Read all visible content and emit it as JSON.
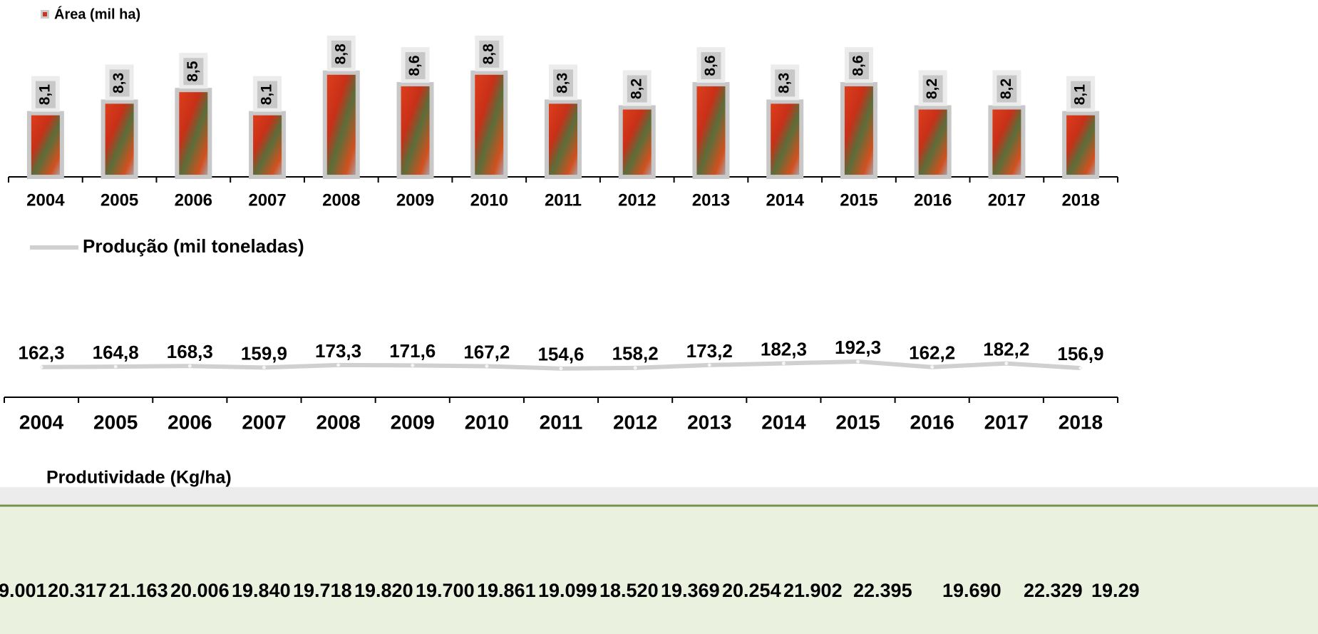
{
  "chart_data": [
    {
      "type": "bar",
      "legend": "Área (mil ha)",
      "legend_position": "top-left",
      "color": "#cc3322",
      "border_color": "#c8c8c8",
      "categories": [
        "2004",
        "2005",
        "2006",
        "2007",
        "2008",
        "2009",
        "2010",
        "2011",
        "2012",
        "2013",
        "2014",
        "2015",
        "2016",
        "2017",
        "2018"
      ],
      "values": [
        8.1,
        8.3,
        8.5,
        8.1,
        8.8,
        8.6,
        8.8,
        8.3,
        8.2,
        8.6,
        8.3,
        8.6,
        8.2,
        8.2,
        8.1
      ],
      "value_labels": [
        "8,1",
        "8,3",
        "8,5",
        "8,1",
        "8,8",
        "8,6",
        "8,8",
        "8,3",
        "8,2",
        "8,6",
        "8,3",
        "8,6",
        "8,2",
        "8,2",
        "8,1"
      ],
      "ylim": [
        7,
        9.5
      ]
    },
    {
      "type": "line",
      "legend": "Produção (mil toneladas)",
      "legend_position": "top-left",
      "color": "#d0d0d0",
      "categories": [
        "2004",
        "2005",
        "2006",
        "2007",
        "2008",
        "2009",
        "2010",
        "2011",
        "2012",
        "2013",
        "2014",
        "2015",
        "2016",
        "2017",
        "2018"
      ],
      "values": [
        162.3,
        164.8,
        168.3,
        159.9,
        173.3,
        171.6,
        167.2,
        154.6,
        158.2,
        173.2,
        182.3,
        192.3,
        162.2,
        182.2,
        156.9
      ],
      "value_labels": [
        "162,3",
        "164,8",
        "168,3",
        "159,9",
        "173,3",
        "171,6",
        "167,2",
        "154,6",
        "158,2",
        "173,2",
        "182,3",
        "192,3",
        "162,2",
        "182,2",
        "156,9"
      ],
      "ylim": [
        0,
        680
      ]
    }
  ],
  "table": {
    "title": "Produtividade (Kg/ha)",
    "values": [
      "9.001",
      "20.317",
      "21.163",
      "20.006",
      "19.840",
      "19.718",
      "19.820",
      "19.700",
      "19.861",
      "19.099",
      "18.520",
      "19.369",
      "20.254",
      "21.902",
      "22.395",
      "19.690",
      "22.329",
      "19.29"
    ]
  }
}
